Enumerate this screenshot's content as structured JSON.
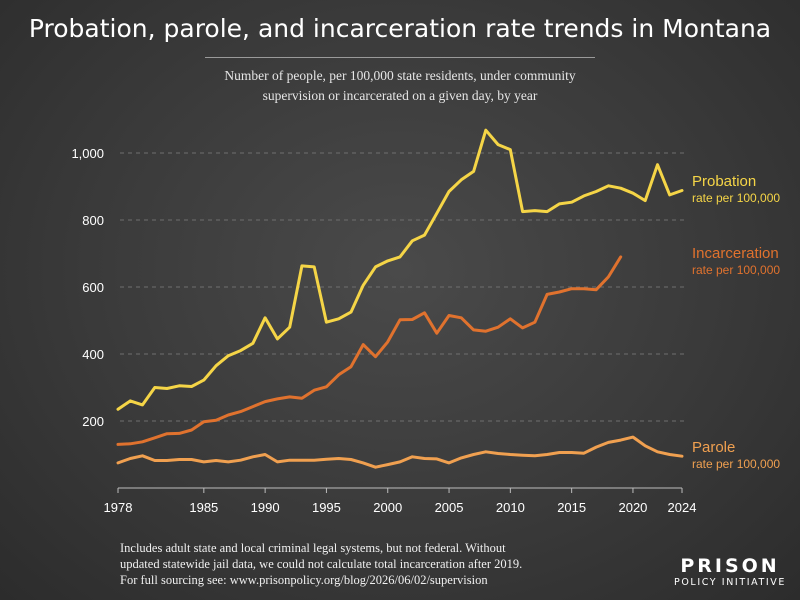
{
  "header": {
    "title": "Probation, parole, and incarceration rate trends in Montana",
    "subtitle_line1": "Number of people, per 100,000 state residents, under community",
    "subtitle_line2": "supervision or incarcerated on a given day, by year"
  },
  "footnote": {
    "line1": "Includes adult state and local criminal legal systems, but not federal. Without",
    "line2": "updated statewide jail data, we could not calculate total incarceration after 2019.",
    "line3": "For full sourcing see: www.prisonpolicy.org/blog/2026/06/02/supervision"
  },
  "logo": {
    "line1": "PRISON",
    "line2": "POLICY INITIATIVE"
  },
  "colors": {
    "probation": "#f5d547",
    "incarceration": "#e0722e",
    "parole": "#f0a050",
    "axis": "#bdbdbd"
  },
  "chart_data": {
    "type": "line",
    "xlim": [
      1978,
      2024
    ],
    "ylim": [
      0,
      1100
    ],
    "x_ticks": [
      1978,
      1985,
      1990,
      1995,
      2000,
      2005,
      2010,
      2015,
      2020,
      2024
    ],
    "x_tick_labels": [
      "1978",
      "1985",
      "1990",
      "1995",
      "2000",
      "2005",
      "2010",
      "2015",
      "2020",
      "2024"
    ],
    "y_ticks": [
      200,
      400,
      600,
      800,
      1000
    ],
    "y_tick_labels": [
      "200",
      "400",
      "600",
      "800",
      "1,000"
    ],
    "grid": "horizontal dashed",
    "series": [
      {
        "name": "Probation",
        "sublabel": "rate per 100,000",
        "x": [
          1978,
          1979,
          1980,
          1981,
          1982,
          1983,
          1984,
          1985,
          1986,
          1987,
          1988,
          1989,
          1990,
          1991,
          1992,
          1993,
          1994,
          1995,
          1996,
          1997,
          1998,
          1999,
          2000,
          2001,
          2002,
          2003,
          2004,
          2005,
          2006,
          2007,
          2008,
          2009,
          2010,
          2011,
          2012,
          2013,
          2014,
          2015,
          2016,
          2017,
          2018,
          2019,
          2020,
          2021,
          2022,
          2023,
          2024
        ],
        "values": [
          235,
          260,
          248,
          300,
          297,
          305,
          303,
          322,
          365,
          395,
          410,
          432,
          508,
          445,
          480,
          663,
          660,
          495,
          505,
          525,
          605,
          660,
          678,
          690,
          738,
          755,
          820,
          885,
          920,
          945,
          1068,
          1025,
          1010,
          825,
          828,
          825,
          848,
          853,
          872,
          885,
          902,
          895,
          880,
          858,
          965,
          875,
          888
        ]
      },
      {
        "name": "Incarceration",
        "sublabel": "rate per 100,000",
        "x": [
          1978,
          1979,
          1980,
          1981,
          1982,
          1983,
          1984,
          1985,
          1986,
          1987,
          1988,
          1989,
          1990,
          1991,
          1992,
          1993,
          1994,
          1995,
          1996,
          1997,
          1998,
          1999,
          2000,
          2001,
          2002,
          2003,
          2004,
          2005,
          2006,
          2007,
          2008,
          2009,
          2010,
          2011,
          2012,
          2013,
          2014,
          2015,
          2016,
          2017,
          2018,
          2019
        ],
        "values": [
          130,
          132,
          138,
          150,
          162,
          163,
          173,
          198,
          202,
          218,
          228,
          243,
          258,
          266,
          272,
          268,
          292,
          302,
          338,
          362,
          428,
          392,
          436,
          502,
          503,
          523,
          462,
          515,
          508,
          472,
          468,
          480,
          505,
          478,
          495,
          578,
          585,
          595,
          595,
          592,
          630,
          690
        ]
      },
      {
        "name": "Parole",
        "sublabel": "rate per 100,000",
        "x": [
          1978,
          1979,
          1980,
          1981,
          1982,
          1983,
          1984,
          1985,
          1986,
          1987,
          1988,
          1989,
          1990,
          1991,
          1992,
          1993,
          1994,
          1995,
          1996,
          1997,
          1998,
          1999,
          2000,
          2001,
          2002,
          2003,
          2004,
          2005,
          2006,
          2007,
          2008,
          2009,
          2010,
          2011,
          2012,
          2013,
          2014,
          2015,
          2016,
          2017,
          2018,
          2019,
          2020,
          2021,
          2022,
          2023,
          2024
        ],
        "values": [
          75,
          88,
          96,
          82,
          82,
          85,
          85,
          78,
          82,
          78,
          83,
          93,
          100,
          78,
          83,
          83,
          83,
          86,
          88,
          85,
          75,
          62,
          70,
          78,
          93,
          88,
          87,
          75,
          90,
          100,
          108,
          103,
          100,
          98,
          96,
          100,
          106,
          106,
          104,
          122,
          136,
          143,
          152,
          126,
          108,
          100,
          95
        ]
      }
    ]
  }
}
